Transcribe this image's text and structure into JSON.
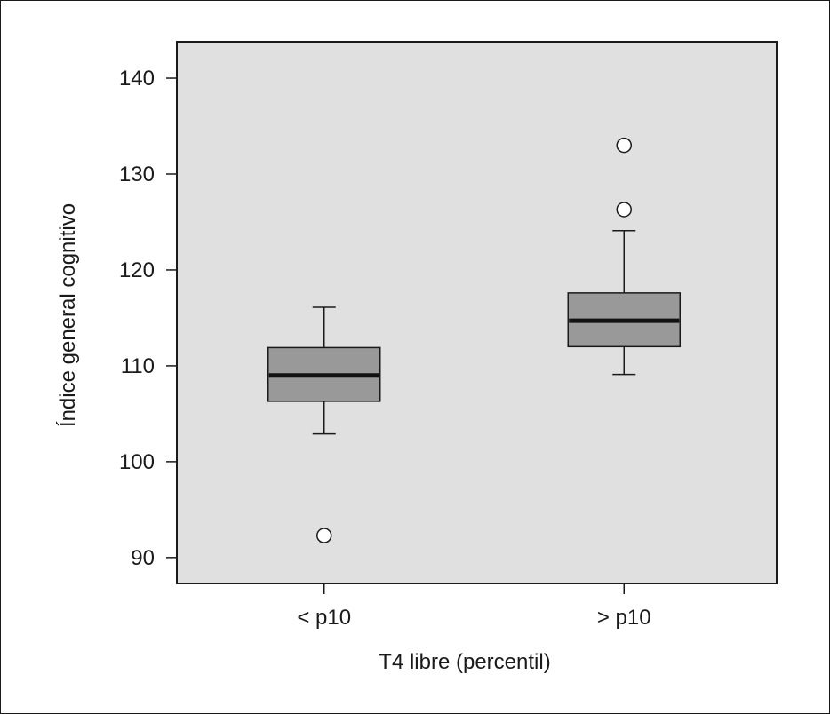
{
  "chart_data": {
    "type": "boxplot",
    "xlabel": "T4 libre (percentil)",
    "ylabel": "Índice general cognitivo",
    "ylim": [
      87.3,
      143.8
    ],
    "yticks": [
      90,
      100,
      110,
      120,
      130,
      140
    ],
    "categories": [
      "< p10",
      "> p10"
    ],
    "boxes": [
      {
        "category": "< p10",
        "whisker_low": 102.9,
        "q1": 106.3,
        "median": 109.0,
        "q3": 111.9,
        "whisker_high": 116.1,
        "outliers": [
          92.3
        ]
      },
      {
        "category": "> p10",
        "whisker_low": 109.1,
        "q1": 112.0,
        "median": 114.7,
        "q3": 117.6,
        "whisker_high": 124.1,
        "outliers": [
          126.3,
          133.0
        ]
      }
    ],
    "grid": false,
    "colors": {
      "plot_background": "#e0e0e0",
      "box_fill": "#999999",
      "median_line": "#111111",
      "outline": "#1a1a1a",
      "outlier_fill": "#ffffff"
    }
  }
}
